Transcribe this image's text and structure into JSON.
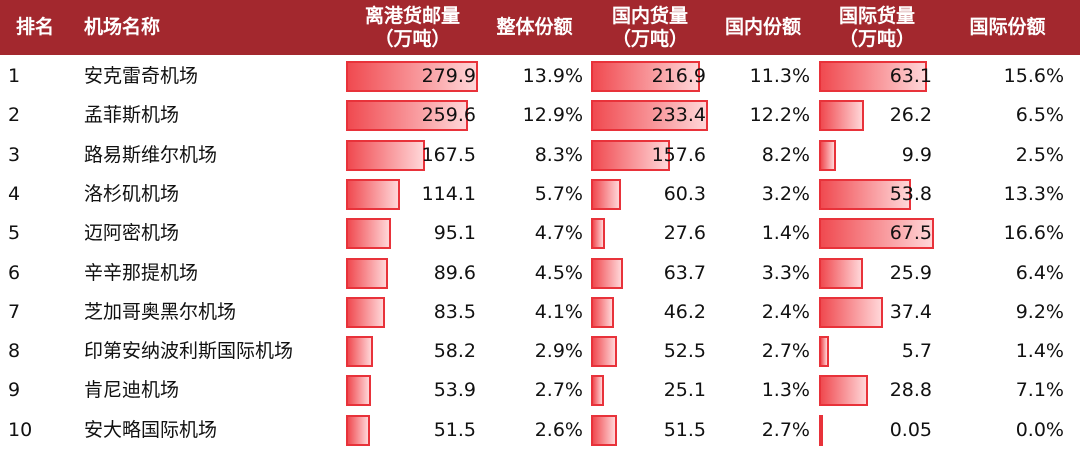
{
  "table": {
    "header": [
      [
        "排名"
      ],
      [
        "机场名称"
      ],
      [
        "离港货邮量",
        "（万吨）"
      ],
      [
        "整体份额"
      ],
      [
        "国内货量",
        "（万吨）"
      ],
      [
        "国内份额"
      ],
      [
        "国际货量",
        "（万吨）"
      ],
      [
        "国际份额"
      ]
    ],
    "rows": [
      [
        "1",
        "安克雷奇机场",
        279.9,
        "13.9%",
        216.9,
        "11.3%",
        63.1,
        "15.6%"
      ],
      [
        "2",
        "孟菲斯机场",
        259.6,
        "12.9%",
        233.4,
        "12.2%",
        26.2,
        "6.5%"
      ],
      [
        "3",
        "路易斯维尔机场",
        167.5,
        "8.3%",
        157.6,
        "8.2%",
        9.9,
        "2.5%"
      ],
      [
        "4",
        "洛杉矶机场",
        114.1,
        "5.7%",
        60.3,
        "3.2%",
        53.8,
        "13.3%"
      ],
      [
        "5",
        "迈阿密机场",
        95.1,
        "4.7%",
        27.6,
        "1.4%",
        67.5,
        "16.6%"
      ],
      [
        "6",
        "辛辛那提机场",
        89.6,
        "4.5%",
        63.7,
        "3.3%",
        25.9,
        "6.4%"
      ],
      [
        "7",
        "芝加哥奥黑尔机场",
        83.5,
        "4.1%",
        46.2,
        "2.4%",
        37.4,
        "9.2%"
      ],
      [
        "8",
        "印第安纳波利斯国际机场",
        58.2,
        "2.9%",
        52.5,
        "2.7%",
        5.7,
        "1.4%"
      ],
      [
        "9",
        "肯尼迪机场",
        53.9,
        "2.7%",
        25.1,
        "1.3%",
        28.8,
        "7.1%"
      ],
      [
        "10",
        "安大略国际机场",
        51.5,
        "2.6%",
        51.5,
        "2.7%",
        0.05,
        "0.0%"
      ]
    ]
  }
}
